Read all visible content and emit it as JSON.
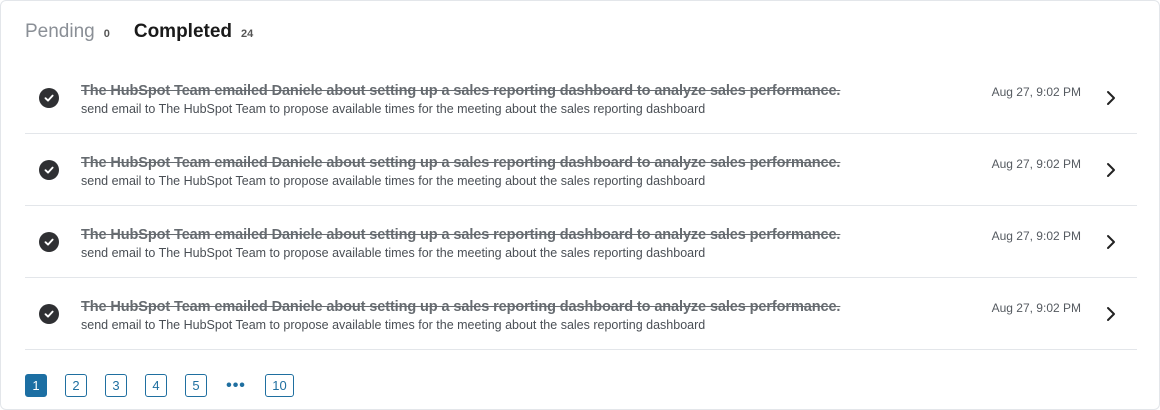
{
  "tabs": {
    "pending": {
      "label": "Pending",
      "count": "0"
    },
    "completed": {
      "label": "Completed",
      "count": "24"
    }
  },
  "tasks": [
    {
      "title": "The HubSpot Team emailed Daniele about setting up a sales reporting dashboard to analyze sales performance.",
      "subtitle": "send email to The HubSpot Team to propose available times for the meeting about the sales reporting dashboard",
      "time": "Aug 27, 9:02 PM",
      "status_icon": "check-circle-icon"
    },
    {
      "title": "The HubSpot Team emailed Daniele about setting up a sales reporting dashboard to analyze sales performance.",
      "subtitle": "send email to The HubSpot Team to propose available times for the meeting about the sales reporting dashboard",
      "time": "Aug 27, 9:02 PM",
      "status_icon": "check-circle-icon"
    },
    {
      "title": "The HubSpot Team emailed Daniele about setting up a sales reporting dashboard to analyze sales performance.",
      "subtitle": "send email to The HubSpot Team to propose available times for the meeting about the sales reporting dashboard",
      "time": "Aug 27, 9:02 PM",
      "status_icon": "check-circle-icon"
    },
    {
      "title": "The HubSpot Team emailed Daniele about setting up a sales reporting dashboard to analyze sales performance.",
      "subtitle": "send email to The HubSpot Team to propose available times for the meeting about the sales reporting dashboard",
      "time": "Aug 27, 9:02 PM",
      "status_icon": "check-circle-icon"
    }
  ],
  "pagination": {
    "pages": [
      "1",
      "2",
      "3",
      "4",
      "5"
    ],
    "ellipsis": "•••",
    "last": "10",
    "current": "1"
  },
  "colors": {
    "accent": "#1c6fa3",
    "check": "#2f3033",
    "border": "#e3e6ea"
  }
}
